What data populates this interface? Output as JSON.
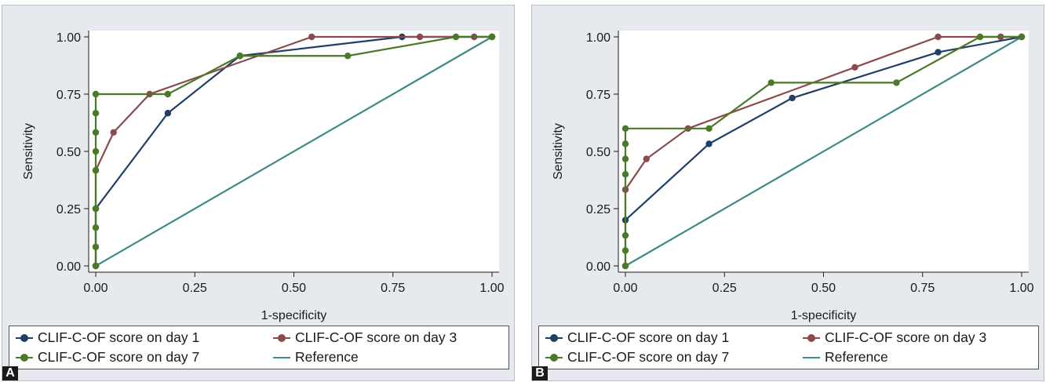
{
  "colors": {
    "day1": "#1f3f66",
    "day3": "#8b4a4e",
    "day7": "#4a7a27",
    "reference": "#3d8a86",
    "panel_bg": "#e6e9ee",
    "plot_bg": "#ffffff"
  },
  "legend": {
    "day1": "CLIF-C-OF score on day 1",
    "day3": "CLIF-C-OF score on day 3",
    "day7": "CLIF-C-OF score on day 7",
    "reference": "Reference"
  },
  "chart_data": [
    {
      "panel_label": "A",
      "type": "line",
      "xlabel": "1-specificity",
      "ylabel": "Sensitivity",
      "xlim": [
        0,
        1
      ],
      "ylim": [
        0,
        1
      ],
      "xticks": [
        "0.00",
        "0.25",
        "0.50",
        "0.75",
        "1.00"
      ],
      "yticks": [
        "0.00",
        "0.25",
        "0.50",
        "0.75",
        "1.00"
      ],
      "grid": false,
      "legend_position": "bottom",
      "series": [
        {
          "name": "CLIF-C-OF score on day 1",
          "key": "day1",
          "x": [
            0,
            0,
            0.182,
            0.364,
            0.773,
            1.0
          ],
          "y": [
            0,
            0.25,
            0.667,
            0.917,
            1.0,
            1.0
          ]
        },
        {
          "name": "CLIF-C-OF score on day 3",
          "key": "day3",
          "x": [
            0,
            0,
            0.045,
            0.136,
            0.545,
            0.818,
            0.955,
            1.0
          ],
          "y": [
            0,
            0.417,
            0.583,
            0.75,
            1.0,
            1.0,
            1.0,
            1.0
          ]
        },
        {
          "name": "CLIF-C-OF score on day 7",
          "key": "day7",
          "x": [
            0,
            0,
            0,
            0,
            0,
            0,
            0,
            0,
            0,
            0,
            0.182,
            0.364,
            0.636,
            0.909,
            1.0
          ],
          "y": [
            0,
            0,
            0.083,
            0.167,
            0.25,
            0.417,
            0.5,
            0.583,
            0.667,
            0.75,
            0.75,
            0.917,
            0.917,
            1.0,
            1.0
          ]
        },
        {
          "name": "Reference",
          "key": "reference",
          "markers": false,
          "x": [
            0,
            1
          ],
          "y": [
            0,
            1
          ]
        }
      ]
    },
    {
      "panel_label": "B",
      "type": "line",
      "xlabel": "1-specificity",
      "ylabel": "Sensitivity",
      "xlim": [
        0,
        1
      ],
      "ylim": [
        0,
        1
      ],
      "xticks": [
        "0.00",
        "0.25",
        "0.50",
        "0.75",
        "1.00"
      ],
      "yticks": [
        "0.00",
        "0.25",
        "0.50",
        "0.75",
        "1.00"
      ],
      "grid": false,
      "legend_position": "bottom",
      "series": [
        {
          "name": "CLIF-C-OF score on day 1",
          "key": "day1",
          "x": [
            0,
            0.211,
            0.421,
            0.789,
            1.0
          ],
          "y": [
            0.2,
            0.533,
            0.733,
            0.933,
            1.0
          ]
        },
        {
          "name": "CLIF-C-OF score on day 3",
          "key": "day3",
          "x": [
            0,
            0,
            0.053,
            0.158,
            0.579,
            0.789,
            0.947,
            1.0
          ],
          "y": [
            0,
            0.333,
            0.467,
            0.6,
            0.867,
            1.0,
            1.0,
            1.0
          ]
        },
        {
          "name": "CLIF-C-OF score on day 7",
          "key": "day7",
          "x": [
            0,
            0,
            0,
            0,
            0,
            0,
            0,
            0.211,
            0.368,
            0.684,
            0.895,
            1.0
          ],
          "y": [
            0,
            0.067,
            0.133,
            0.4,
            0.467,
            0.533,
            0.6,
            0.6,
            0.8,
            0.8,
            1.0,
            1.0
          ]
        },
        {
          "name": "Reference",
          "key": "reference",
          "markers": false,
          "x": [
            0,
            1
          ],
          "y": [
            0,
            1
          ]
        }
      ]
    }
  ]
}
